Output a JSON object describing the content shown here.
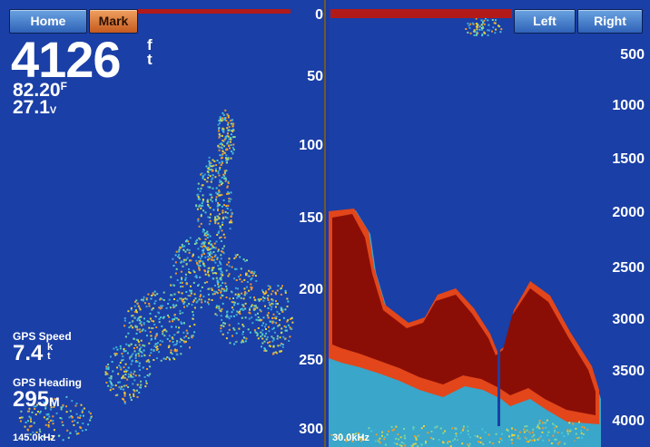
{
  "buttons": {
    "home": "Home",
    "mark": "Mark",
    "left": "Left",
    "right": "Right"
  },
  "readouts": {
    "depth_value": "4126",
    "depth_unit_top": "f",
    "depth_unit_bottom": "t",
    "temperature_value": "82.20",
    "temperature_unit": "F",
    "voltage_value": "27.1",
    "voltage_unit": "V",
    "gps_speed_label": "GPS Speed",
    "gps_speed_value": "7.4",
    "gps_speed_unit_top": "k",
    "gps_speed_unit_bottom": "t",
    "gps_heading_label": "GPS Heading",
    "gps_heading_value": "295",
    "gps_heading_unit": "M"
  },
  "left_pane": {
    "frequency": "145.0kHz",
    "depth_scale": [
      "0",
      "50",
      "100",
      "150",
      "200",
      "250",
      "300"
    ]
  },
  "right_pane": {
    "frequency": "30.0kHz",
    "depth_scale": [
      "500",
      "1000",
      "1500",
      "2000",
      "2500",
      "3000",
      "3500",
      "4000"
    ]
  },
  "colors": {
    "water": "#1a3fa6",
    "bottom_strong": "#8a0e06",
    "bottom_mid": "#e2461a",
    "echo_weak": "#47c8d8",
    "echo_mid": "#e8d23a",
    "button_blue": "#2f62b8",
    "button_orange": "#c45a1e"
  }
}
